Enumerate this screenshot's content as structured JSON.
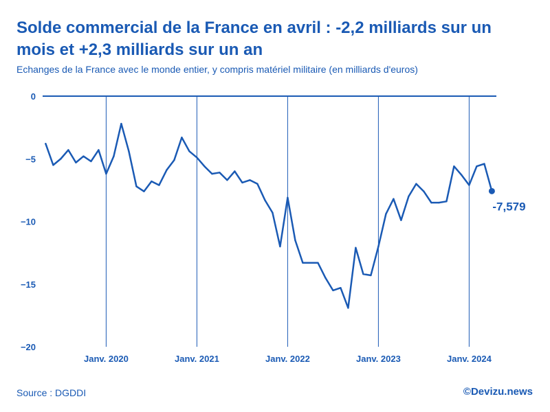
{
  "colors": {
    "line": "#1a5ab4",
    "text": "#1a5ab4",
    "background": "#ffffff"
  },
  "chart_data": {
    "type": "line",
    "title_lines": [
      "Solde commercial de la France en avril : -2,2 milliards sur un",
      "mois et +2,3 milliards sur un an"
    ],
    "subtitle": "Echanges de la France avec le monde entier, y compris matériel militaire (en milliards d'euros)",
    "xlabel": "",
    "ylabel": "",
    "grid": "vertical lines at each January",
    "legend": "none",
    "start": {
      "year": 2019,
      "month": 5
    },
    "step_months": 1,
    "xlim": [
      2019.3,
      2024.3
    ],
    "ylim": [
      -20,
      0
    ],
    "series": [
      {
        "name": "Solde commercial",
        "values": [
          -3.8,
          -5.5,
          -5.0,
          -4.3,
          -5.3,
          -4.8,
          -5.2,
          -4.3,
          -6.2,
          -4.8,
          -2.2,
          -4.4,
          -7.2,
          -7.6,
          -6.8,
          -7.1,
          -5.9,
          -5.1,
          -3.3,
          -4.4,
          -4.9,
          -5.6,
          -6.2,
          -6.1,
          -6.7,
          -6.0,
          -6.9,
          -6.7,
          -7.0,
          -8.3,
          -9.3,
          -12.0,
          -8.1,
          -11.5,
          -13.3,
          -13.3,
          -13.3,
          -14.5,
          -15.5,
          -15.3,
          -16.9,
          -12.1,
          -14.2,
          -14.3,
          -12.0,
          -9.4,
          -8.2,
          -9.9,
          -8.0,
          -7.0,
          -7.6,
          -8.5,
          -8.5,
          -8.4,
          -5.6,
          -6.3,
          -7.1,
          -5.6,
          -5.4,
          -7.579
        ]
      }
    ],
    "y_ticks": [
      {
        "value": 0,
        "label": "0"
      },
      {
        "value": -5,
        "label": "−5"
      },
      {
        "value": -10,
        "label": "−10"
      },
      {
        "value": -15,
        "label": "−15"
      },
      {
        "value": -20,
        "label": "−20"
      }
    ],
    "x_ticks": [
      {
        "value": 2020,
        "label": "Janv. 2020"
      },
      {
        "value": 2021,
        "label": "Janv. 2021"
      },
      {
        "value": 2022,
        "label": "Janv. 2022"
      },
      {
        "value": 2023,
        "label": "Janv. 2023"
      },
      {
        "value": 2024,
        "label": "Janv. 2024"
      }
    ],
    "end_label": {
      "text": "-7,579"
    }
  },
  "footer": {
    "source": "Source : DGDDI",
    "credit": "©Devizu.news"
  }
}
